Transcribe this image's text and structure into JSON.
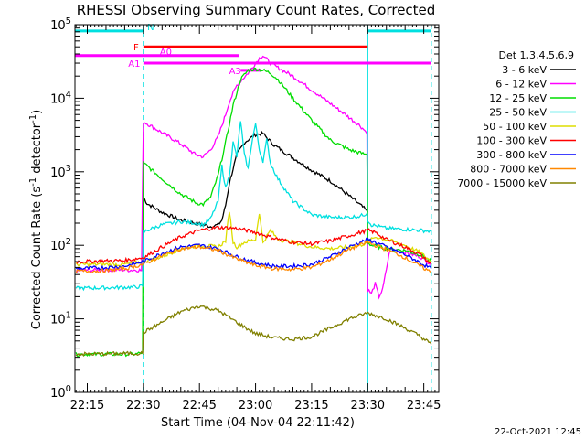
{
  "chart_data": {
    "type": "line",
    "title": "RHESSI Observing Summary Count Rates, Corrected",
    "xlabel": "Start Time (04-Nov-04 22:11:42)",
    "ylabel": "Corrected Count Rate (s⁻¹ detector⁻¹)",
    "ylabel_parts": {
      "main": "Corrected Count Rate (s",
      "sup1": "-1",
      "mid": " detector",
      "sup2": "-1",
      "end": ")"
    },
    "x_unit": "minutes after 22:00 UT",
    "xlim": [
      11.7,
      109
    ],
    "ylim": [
      1,
      100000
    ],
    "y_scale": "log",
    "y_ticks": [
      {
        "value": 1,
        "base": "10",
        "exp": "0"
      },
      {
        "value": 10,
        "base": "10",
        "exp": "1"
      },
      {
        "value": 100,
        "base": "10",
        "exp": "2"
      },
      {
        "value": 1000,
        "base": "10",
        "exp": "3"
      },
      {
        "value": 10000,
        "base": "10",
        "exp": "4"
      },
      {
        "value": 100000,
        "base": "10",
        "exp": "5"
      }
    ],
    "x_ticks": [
      {
        "value": 15,
        "label": "22:15"
      },
      {
        "value": 30,
        "label": "22:30"
      },
      {
        "value": 45,
        "label": "22:45"
      },
      {
        "value": 60,
        "label": "23:00"
      },
      {
        "value": 75,
        "label": "23:15"
      },
      {
        "value": 90,
        "label": "23:30"
      },
      {
        "value": 105,
        "label": "23:45"
      }
    ],
    "legend_position": "right",
    "legend_title": "Det 1,3,4,5,6,9",
    "series": [
      {
        "name": "3 - 6 keV",
        "color": "#000000",
        "x": [
          30,
          31,
          35,
          40,
          45,
          48,
          50,
          51,
          52,
          53,
          54,
          55,
          57,
          60,
          62,
          63,
          65,
          70,
          75,
          80,
          84,
          87,
          89,
          90
        ],
        "y": [
          450,
          370,
          280,
          220,
          195,
          180,
          190,
          220,
          350,
          700,
          1100,
          1700,
          2500,
          3200,
          3300,
          2900,
          2300,
          1550,
          1050,
          750,
          520,
          390,
          320,
          280
        ]
      },
      {
        "name": "6 - 12 keV",
        "color": "#ff00ff",
        "x": [
          12,
          28,
          29,
          29.5,
          30,
          31,
          35,
          40,
          44,
          46,
          48,
          50,
          52,
          53,
          55,
          58,
          60,
          61,
          62,
          64,
          66,
          70,
          75,
          80,
          85,
          88,
          89.5,
          89.8,
          90,
          91,
          92,
          93,
          94,
          96,
          100,
          104,
          107
        ],
        "y": [
          46,
          46,
          46,
          45,
          4800,
          4500,
          3400,
          2400,
          1700,
          1600,
          2000,
          3000,
          6000,
          9000,
          15000,
          22000,
          30000,
          35000,
          38000,
          30000,
          26000,
          20000,
          13000,
          8500,
          5500,
          4200,
          3500,
          3300,
          25,
          22,
          30,
          20,
          25,
          90,
          80,
          70,
          55
        ]
      },
      {
        "name": "12 - 25 keV",
        "color": "#00dd00",
        "x": [
          12,
          28,
          29.8,
          30,
          31,
          35,
          40,
          44,
          46,
          48,
          50,
          52,
          54,
          56,
          58,
          60,
          62,
          64,
          66,
          70,
          75,
          80,
          85,
          88,
          89.8,
          90,
          91,
          93,
          95,
          100,
          104,
          107
        ],
        "y": [
          3.3,
          3.3,
          3.5,
          1300,
          1200,
          800,
          500,
          380,
          360,
          450,
          900,
          2500,
          8000,
          18000,
          24000,
          25000,
          24000,
          22000,
          18000,
          10000,
          5000,
          2700,
          2000,
          1800,
          1700,
          110,
          100,
          95,
          90,
          85,
          75,
          60
        ]
      },
      {
        "name": "25 - 50 keV",
        "color": "#00e0e0",
        "x": [
          12,
          28,
          29.8,
          30,
          31,
          35,
          40,
          44,
          46,
          48,
          50,
          51,
          52,
          53,
          54,
          55,
          56,
          57,
          58,
          59,
          60,
          61,
          62,
          63,
          64,
          66,
          70,
          75,
          80,
          85,
          88,
          89.8,
          90,
          91,
          93,
          95,
          100,
          104,
          107
        ],
        "y": [
          26,
          27,
          28,
          150,
          160,
          190,
          210,
          200,
          190,
          230,
          400,
          1200,
          600,
          900,
          2500,
          1600,
          5000,
          1700,
          1100,
          2500,
          4500,
          2000,
          1400,
          2700,
          1300,
          800,
          400,
          260,
          240,
          240,
          250,
          270,
          220,
          190,
          180,
          170,
          165,
          160,
          155
        ]
      },
      {
        "name": "50 - 100 keV",
        "color": "#dddd00",
        "x": [
          12,
          25,
          30,
          35,
          40,
          45,
          50,
          52,
          53,
          54,
          55,
          57,
          60,
          61,
          62,
          64,
          66,
          70,
          75,
          80,
          85,
          88,
          90,
          92,
          95,
          100,
          104,
          107
        ],
        "y": [
          55,
          55,
          60,
          70,
          90,
          100,
          95,
          115,
          300,
          110,
          95,
          110,
          120,
          280,
          110,
          160,
          120,
          110,
          95,
          90,
          95,
          100,
          110,
          130,
          120,
          100,
          80,
          60
        ]
      },
      {
        "name": "100 - 300 keV",
        "color": "#ff0000",
        "x": [
          12,
          25,
          30,
          35,
          40,
          45,
          50,
          55,
          60,
          65,
          70,
          75,
          80,
          85,
          90,
          92,
          95,
          100,
          104,
          107
        ],
        "y": [
          60,
          62,
          68,
          95,
          130,
          160,
          175,
          170,
          150,
          125,
          110,
          105,
          115,
          135,
          160,
          150,
          120,
          95,
          75,
          55
        ]
      },
      {
        "name": "300 - 800 keV",
        "color": "#0000ff",
        "x": [
          12,
          20,
          25,
          30,
          35,
          40,
          45,
          50,
          55,
          60,
          65,
          70,
          75,
          80,
          85,
          90,
          92,
          95,
          100,
          104,
          107
        ],
        "y": [
          48,
          50,
          52,
          60,
          78,
          95,
          100,
          90,
          70,
          58,
          52,
          52,
          55,
          70,
          95,
          120,
          110,
          95,
          75,
          58,
          48
        ]
      },
      {
        "name": "800 - 7000 keV",
        "color": "#ff8800",
        "x": [
          12,
          20,
          25,
          30,
          35,
          40,
          45,
          50,
          55,
          60,
          65,
          70,
          75,
          80,
          85,
          90,
          92,
          95,
          100,
          104,
          107
        ],
        "y": [
          44,
          45,
          48,
          55,
          72,
          90,
          95,
          85,
          65,
          53,
          48,
          47,
          50,
          64,
          88,
          110,
          100,
          88,
          68,
          52,
          43
        ]
      },
      {
        "name": "7000 - 15000 keV",
        "color": "#808000",
        "x": [
          12,
          29.8,
          30,
          35,
          40,
          45,
          50,
          55,
          58,
          60,
          65,
          70,
          75,
          80,
          85,
          90,
          95,
          100,
          104,
          107
        ],
        "y": [
          3.3,
          3.4,
          6.5,
          9,
          12.5,
          15,
          13,
          9,
          7.2,
          6.3,
          5.5,
          5.3,
          5.7,
          7.5,
          10,
          12,
          10,
          7.5,
          5.8,
          4.5
        ]
      }
    ],
    "attenuator_bars": [
      {
        "label": "N",
        "color": "#00e0e0",
        "segments": [
          [
            11.7,
            30
          ],
          [
            90,
            107
          ]
        ],
        "y": 82000
      },
      {
        "label": "F",
        "color": "#ff0000",
        "segments": [
          [
            30,
            90
          ]
        ],
        "y": 50000
      },
      {
        "label": "A0",
        "color": "#ff00ff",
        "segments": [
          [
            11.7,
            55.5
          ]
        ],
        "y": 38000
      },
      {
        "label": "A1",
        "color": "#ff00ff",
        "segments": [
          [
            30,
            107
          ]
        ],
        "y": 30000
      },
      {
        "label": "A3",
        "color": "#ff00ff",
        "segments": [
          [
            56,
            61.5
          ]
        ],
        "y": 24000
      }
    ],
    "vlines": [
      {
        "x": 30,
        "color": "#00e0e0",
        "dashed": true
      },
      {
        "x": 90,
        "color": "#00e0e0",
        "dashed": false
      },
      {
        "x": 107,
        "color": "#00e0e0",
        "dashed": true
      }
    ],
    "annotations": {
      "N": "N",
      "F": "F",
      "A0": "A0",
      "A1": "A1",
      "A3": "A3"
    }
  },
  "footer": {
    "timestamp": "22-Oct-2021 12:45"
  }
}
